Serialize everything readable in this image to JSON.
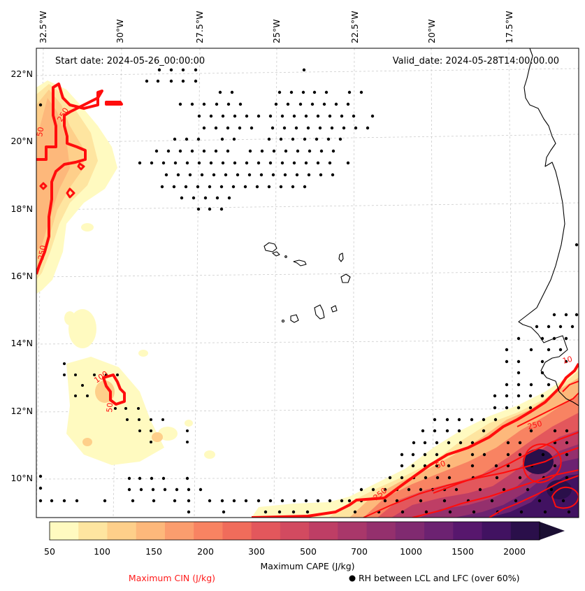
{
  "map": {
    "start_date": "Start date: 2024-05-26_00:00:00",
    "valid_date": "Valid_date: 2024-05-28T14:00:00.00",
    "lon_labels": [
      "32.5°W",
      "30°W",
      "27.5°W",
      "25°W",
      "22.5°W",
      "20°W",
      "17.5°W"
    ],
    "lat_labels": [
      "22°N",
      "20°N",
      "18°N",
      "16°N",
      "14°N",
      "12°N",
      "10°N"
    ],
    "contour_labels": [
      "50",
      "250",
      "250",
      "100",
      "50",
      "250",
      "50",
      "250",
      "10"
    ]
  },
  "colorbar": {
    "title": "Maximum CAPE (J/kg)",
    "tick_labels": [
      "50",
      "100",
      "150",
      "200",
      "300",
      "500",
      "700",
      "1000",
      "1500",
      "2000"
    ],
    "colors": [
      "#fffac0",
      "#fee5a0",
      "#fecf8a",
      "#fdb87b",
      "#fb9d6e",
      "#f88362",
      "#f06c5b",
      "#e3575c",
      "#d24a60",
      "#be3e65",
      "#a9376a",
      "#94306d",
      "#802a70",
      "#6c2271",
      "#57176d",
      "#411261",
      "#2a0f4a",
      "#1b0f33"
    ]
  },
  "legend": {
    "cin_label": "Maximum CIN (J/kg)",
    "rh_label": "RH between LCL and LFC (over 60%)",
    "cin_color": "#ff1a1a"
  }
}
